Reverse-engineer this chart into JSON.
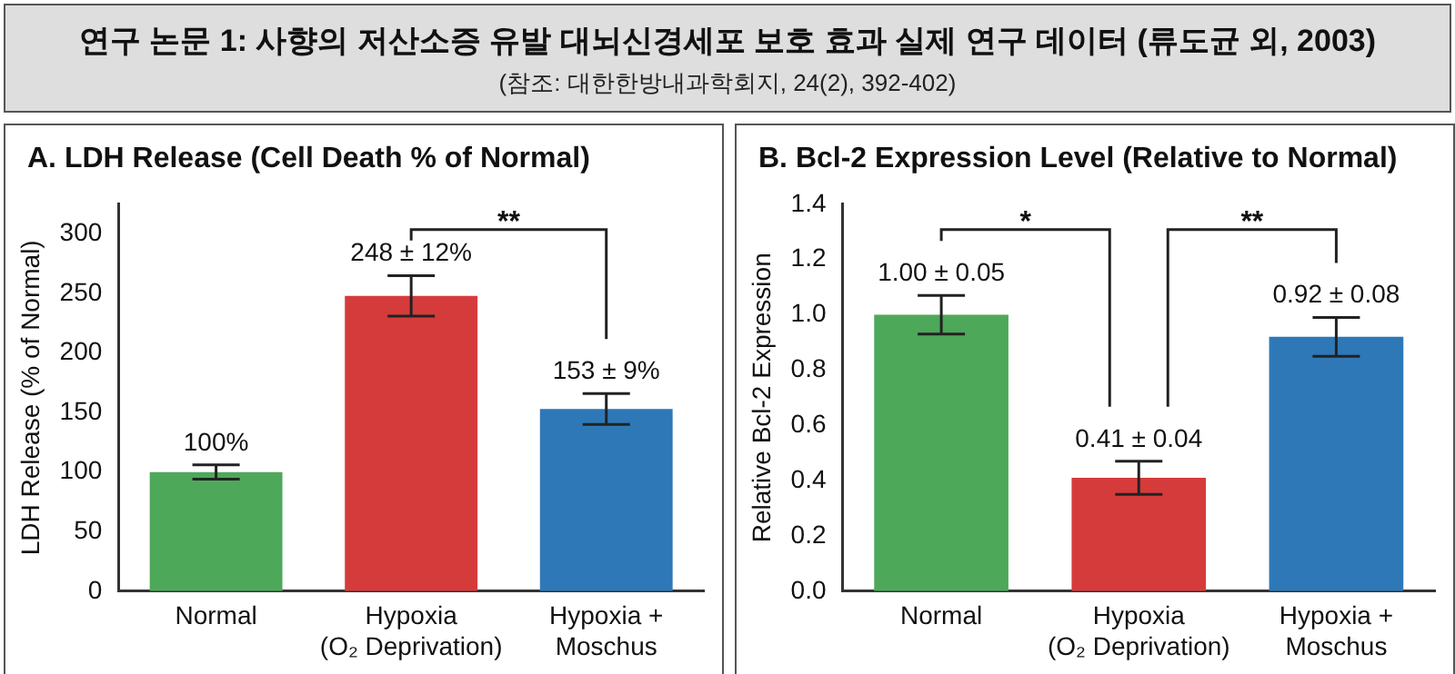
{
  "chart_data": [
    {
      "type": "other",
      "title": "연구 논문 1: 사향의 저산소증 유발 대뇌신경세포 보호 효과 실제 연구 데이터 (류도균 외, 2003)",
      "subtitle": "(참조: 대한한방내과학회지, 24(2), 392-402)"
    },
    {
      "type": "bar",
      "title": "A.  LDH Release (Cell Death % of Normal)",
      "ylabel": "LDH Release (% of Normal)",
      "categories": [
        "Normal",
        "Hypoxia\n(O₂ Deprivation)",
        "Hypoxia +\nMoschus"
      ],
      "values": [
        100,
        248,
        153
      ],
      "colors": [
        "#4ea85a",
        "#d63b3b",
        "#2f78b7"
      ],
      "errors": [
        6,
        17,
        13
      ],
      "value_labels": [
        "100%",
        "248 ± 12%",
        "153 ± 9%"
      ],
      "ylim": [
        0,
        325
      ],
      "yticks": [
        0,
        50,
        100,
        150,
        200,
        250,
        300
      ],
      "grid": false,
      "legend": false,
      "annotations": [
        "**"
      ]
    },
    {
      "type": "bar",
      "title": "B. Bcl-2 Expression Level (Relative to Normal)",
      "ylabel": "Relative Bcl-2 Expression",
      "categories": [
        "Normal",
        "Hypoxia\n(O₂ Deprivation)",
        "Hypoxia +\nMoschus"
      ],
      "values": [
        1.0,
        0.41,
        0.92
      ],
      "colors": [
        "#4ea85a",
        "#d63b3b",
        "#2f78b7"
      ],
      "errors": [
        0.07,
        0.06,
        0.07
      ],
      "value_labels": [
        "1.00 ± 0.05",
        "0.41 ± 0.04",
        "0.92 ± 0.08"
      ],
      "ylim": [
        0,
        1.4
      ],
      "yticks": [
        {
          "value": 0,
          "label": "0.0"
        },
        0.2,
        0.4,
        0.6,
        0.8,
        {
          "value": 1,
          "label": "1.0"
        },
        1.2,
        1.4
      ],
      "grid": false,
      "legend": false,
      "annotations": [
        "*",
        "**"
      ]
    }
  ]
}
